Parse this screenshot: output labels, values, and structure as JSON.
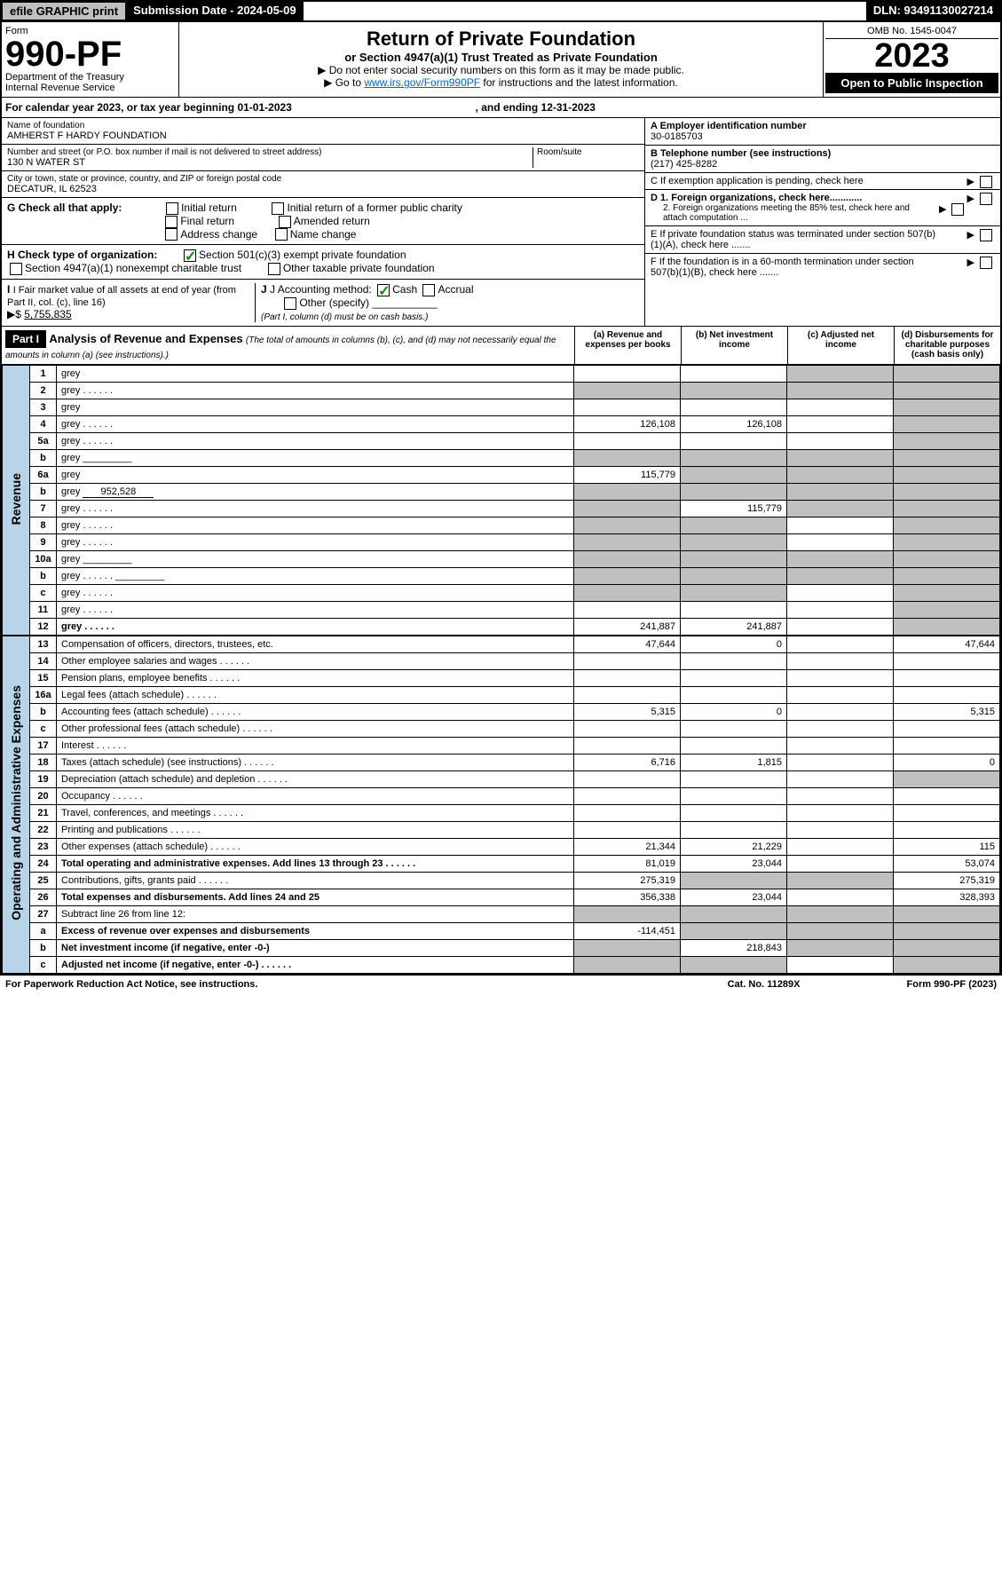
{
  "topbar": {
    "efile": "efile GRAPHIC print",
    "sub_label": "Submission Date - 2024-05-09",
    "dln": "DLN: 93491130027214"
  },
  "form": {
    "label": "Form",
    "number": "990-PF",
    "dept1": "Department of the Treasury",
    "dept2": "Internal Revenue Service"
  },
  "title": {
    "main": "Return of Private Foundation",
    "sub": "or Section 4947(a)(1) Trust Treated as Private Foundation",
    "instr1": "▶ Do not enter social security numbers on this form as it may be made public.",
    "instr2_pre": "▶ Go to ",
    "instr2_link": "www.irs.gov/Form990PF",
    "instr2_post": " for instructions and the latest information."
  },
  "yearbox": {
    "omb": "OMB No. 1545-0047",
    "year": "2023",
    "open": "Open to Public Inspection"
  },
  "cal_year": {
    "pre": "For calendar year 2023, or tax year beginning ",
    "begin": "01-01-2023",
    "mid": ", and ending ",
    "end": "12-31-2023"
  },
  "name_block": {
    "label": "Name of foundation",
    "value": "AMHERST F HARDY FOUNDATION",
    "addr_label": "Number and street (or P.O. box number if mail is not delivered to street address)",
    "addr": "130 N WATER ST",
    "room_label": "Room/suite",
    "city_label": "City or town, state or province, country, and ZIP or foreign postal code",
    "city": "DECATUR, IL  62523"
  },
  "right_block": {
    "a_label": "A Employer identification number",
    "a_val": "30-0185703",
    "b_label": "B Telephone number (see instructions)",
    "b_val": "(217) 425-8282",
    "c_label": "C If exemption application is pending, check here",
    "d1": "D 1. Foreign organizations, check here............",
    "d2": "2. Foreign organizations meeting the 85% test, check here and attach computation ...",
    "e": "E  If private foundation status was terminated under section 507(b)(1)(A), check here .......",
    "f": "F  If the foundation is in a 60-month termination under section 507(b)(1)(B), check here ......."
  },
  "g": {
    "label": "G Check all that apply:",
    "opts": [
      "Initial return",
      "Initial return of a former public charity",
      "Final return",
      "Amended return",
      "Address change",
      "Name change"
    ]
  },
  "h": {
    "label": "H Check type of organization:",
    "opt1": "Section 501(c)(3) exempt private foundation",
    "opt2": "Section 4947(a)(1) nonexempt charitable trust",
    "opt3": "Other taxable private foundation"
  },
  "i": {
    "label": "I Fair market value of all assets at end of year (from Part II, col. (c), line 16)",
    "arrow": "▶$",
    "val": "5,755,835"
  },
  "j": {
    "label": "J Accounting method:",
    "cash": "Cash",
    "accrual": "Accrual",
    "other": "Other (specify)",
    "note": "(Part I, column (d) must be on cash basis.)"
  },
  "part1": {
    "label": "Part I",
    "title": "Analysis of Revenue and Expenses",
    "desc": "(The total of amounts in columns (b), (c), and (d) may not necessarily equal the amounts in column (a) (see instructions).)",
    "col_a": "(a)   Revenue and expenses per books",
    "col_b": "(b)   Net investment income",
    "col_c": "(c)   Adjusted net income",
    "col_d": "(d)   Disbursements for charitable purposes (cash basis only)"
  },
  "side": {
    "rev": "Revenue",
    "exp": "Operating and Administrative Expenses"
  },
  "rows": [
    {
      "n": "1",
      "d": "grey",
      "a": "",
      "b": "",
      "c": "grey"
    },
    {
      "n": "2",
      "d": "grey",
      "a": "grey",
      "b": "grey",
      "c": "grey",
      "dots": true
    },
    {
      "n": "3",
      "d": "grey",
      "a": "",
      "b": "",
      "c": ""
    },
    {
      "n": "4",
      "d": "grey",
      "a": "126,108",
      "b": "126,108",
      "c": "",
      "dots": true
    },
    {
      "n": "5a",
      "d": "grey",
      "a": "",
      "b": "",
      "c": "",
      "dots": true
    },
    {
      "n": "b",
      "d": "grey",
      "a": "grey",
      "b": "grey",
      "c": "grey",
      "inline": true
    },
    {
      "n": "6a",
      "d": "grey",
      "a": "115,779",
      "b": "grey",
      "c": "grey"
    },
    {
      "n": "b",
      "d": "grey",
      "a": "grey",
      "b": "grey",
      "c": "grey",
      "inline": true,
      "inlineval": "952,528"
    },
    {
      "n": "7",
      "d": "grey",
      "a": "grey",
      "b": "115,779",
      "c": "grey",
      "dots": true
    },
    {
      "n": "8",
      "d": "grey",
      "a": "grey",
      "b": "grey",
      "c": "",
      "dots": true
    },
    {
      "n": "9",
      "d": "grey",
      "a": "grey",
      "b": "grey",
      "c": "",
      "dots": true
    },
    {
      "n": "10a",
      "d": "grey",
      "a": "grey",
      "b": "grey",
      "c": "grey",
      "inline": true
    },
    {
      "n": "b",
      "d": "grey",
      "a": "grey",
      "b": "grey",
      "c": "grey",
      "inline": true,
      "dots": true
    },
    {
      "n": "c",
      "d": "grey",
      "a": "grey",
      "b": "grey",
      "c": "",
      "dots": true
    },
    {
      "n": "11",
      "d": "grey",
      "a": "",
      "b": "",
      "c": "",
      "dots": true
    },
    {
      "n": "12",
      "d": "grey",
      "a": "241,887",
      "b": "241,887",
      "c": "",
      "bold": true,
      "dots": true
    }
  ],
  "exp_rows": [
    {
      "n": "13",
      "d": "Compensation of officers, directors, trustees, etc.",
      "a": "47,644",
      "b": "0",
      "c": "",
      "dd": "47,644"
    },
    {
      "n": "14",
      "d": "Other employee salaries and wages",
      "a": "",
      "b": "",
      "c": "",
      "dd": "",
      "dots": true
    },
    {
      "n": "15",
      "d": "Pension plans, employee benefits",
      "a": "",
      "b": "",
      "c": "",
      "dd": "",
      "dots": true
    },
    {
      "n": "16a",
      "d": "Legal fees (attach schedule)",
      "a": "",
      "b": "",
      "c": "",
      "dd": "",
      "dots": true
    },
    {
      "n": "b",
      "d": "Accounting fees (attach schedule)",
      "a": "5,315",
      "b": "0",
      "c": "",
      "dd": "5,315",
      "dots": true
    },
    {
      "n": "c",
      "d": "Other professional fees (attach schedule)",
      "a": "",
      "b": "",
      "c": "",
      "dd": "",
      "dots": true
    },
    {
      "n": "17",
      "d": "Interest",
      "a": "",
      "b": "",
      "c": "",
      "dd": "",
      "dots": true
    },
    {
      "n": "18",
      "d": "Taxes (attach schedule) (see instructions)",
      "a": "6,716",
      "b": "1,815",
      "c": "",
      "dd": "0",
      "dots": true
    },
    {
      "n": "19",
      "d": "Depreciation (attach schedule) and depletion",
      "a": "",
      "b": "",
      "c": "",
      "dd": "grey",
      "dots": true
    },
    {
      "n": "20",
      "d": "Occupancy",
      "a": "",
      "b": "",
      "c": "",
      "dd": "",
      "dots": true
    },
    {
      "n": "21",
      "d": "Travel, conferences, and meetings",
      "a": "",
      "b": "",
      "c": "",
      "dd": "",
      "dots": true
    },
    {
      "n": "22",
      "d": "Printing and publications",
      "a": "",
      "b": "",
      "c": "",
      "dd": "",
      "dots": true
    },
    {
      "n": "23",
      "d": "Other expenses (attach schedule)",
      "a": "21,344",
      "b": "21,229",
      "c": "",
      "dd": "115",
      "dots": true
    },
    {
      "n": "24",
      "d": "Total operating and administrative expenses. Add lines 13 through 23",
      "a": "81,019",
      "b": "23,044",
      "c": "",
      "dd": "53,074",
      "bold": true,
      "dots": true
    },
    {
      "n": "25",
      "d": "Contributions, gifts, grants paid",
      "a": "275,319",
      "b": "grey",
      "c": "grey",
      "dd": "275,319",
      "dots": true
    },
    {
      "n": "26",
      "d": "Total expenses and disbursements. Add lines 24 and 25",
      "a": "356,338",
      "b": "23,044",
      "c": "",
      "dd": "328,393",
      "bold": true
    },
    {
      "n": "27",
      "d": "Subtract line 26 from line 12:",
      "a": "grey",
      "b": "grey",
      "c": "grey",
      "dd": "grey"
    },
    {
      "n": "a",
      "d": "Excess of revenue over expenses and disbursements",
      "a": "-114,451",
      "b": "grey",
      "c": "grey",
      "dd": "grey",
      "bold": true
    },
    {
      "n": "b",
      "d": "Net investment income (if negative, enter -0-)",
      "a": "grey",
      "b": "218,843",
      "c": "grey",
      "dd": "grey",
      "bold": true
    },
    {
      "n": "c",
      "d": "Adjusted net income (if negative, enter -0-)",
      "a": "grey",
      "b": "grey",
      "c": "",
      "dd": "grey",
      "bold": true,
      "dots": true
    }
  ],
  "footer": {
    "left": "For Paperwork Reduction Act Notice, see instructions.",
    "mid": "Cat. No. 11289X",
    "right": "Form 990-PF (2023)"
  }
}
